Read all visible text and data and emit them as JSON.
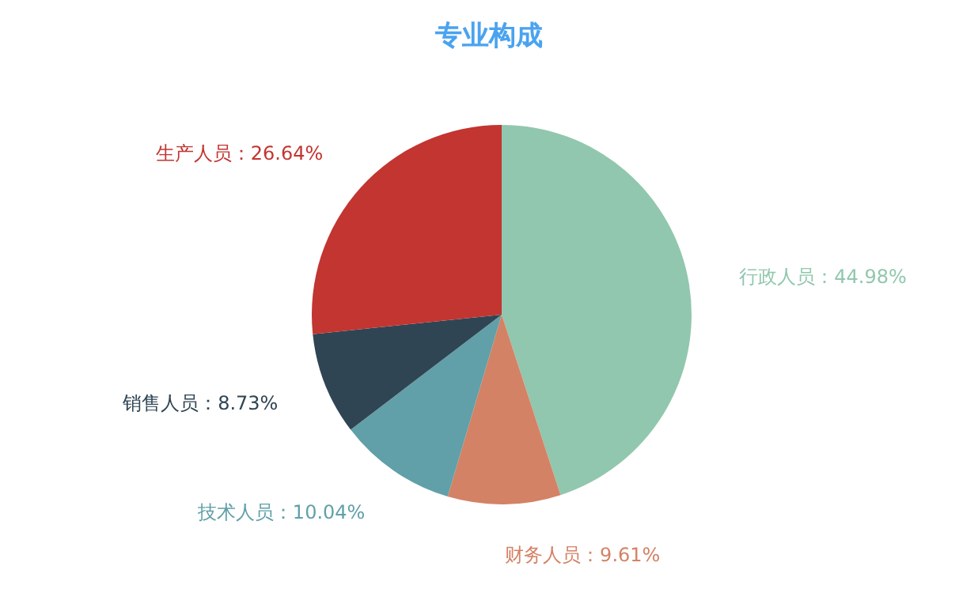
{
  "chart_data": {
    "type": "pie",
    "title": "专业构成",
    "categories": [
      "行政人员",
      "财务人员",
      "技术人员",
      "销售人员",
      "生产人员"
    ],
    "values": [
      44.98,
      9.61,
      10.04,
      8.73,
      26.64
    ],
    "colors": [
      "#91c7ae",
      "#d48265",
      "#61a0a8",
      "#2f4554",
      "#c23531"
    ],
    "value_labels": [
      "44.98%",
      "9.61%",
      "10.04%",
      "8.73%",
      "26.64%"
    ],
    "legend": false
  }
}
